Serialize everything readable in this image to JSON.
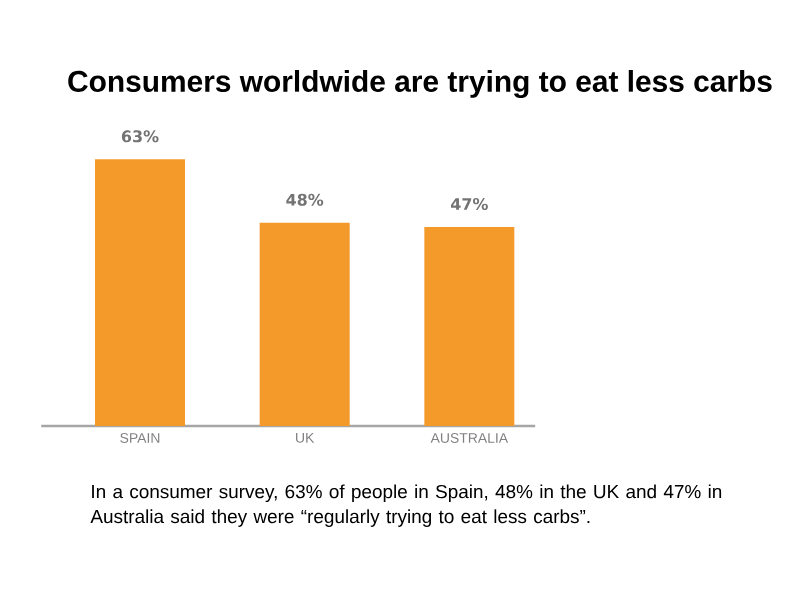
{
  "chart_data": {
    "type": "bar",
    "title": "Consumers worldwide are trying to eat less carbs",
    "categories": [
      "SPAIN",
      "UK",
      "AUSTRALIA"
    ],
    "values": [
      63,
      48,
      47
    ],
    "value_labels": [
      "63%",
      "48%",
      "47%"
    ],
    "color": "#f39a2b",
    "tick_labels": "x",
    "annotations": [
      "In a consumer survey, 63% of people in Spain, 48%  in the UK and 47% in Australia said they were “regularly trying to eat less carbs”."
    ]
  }
}
